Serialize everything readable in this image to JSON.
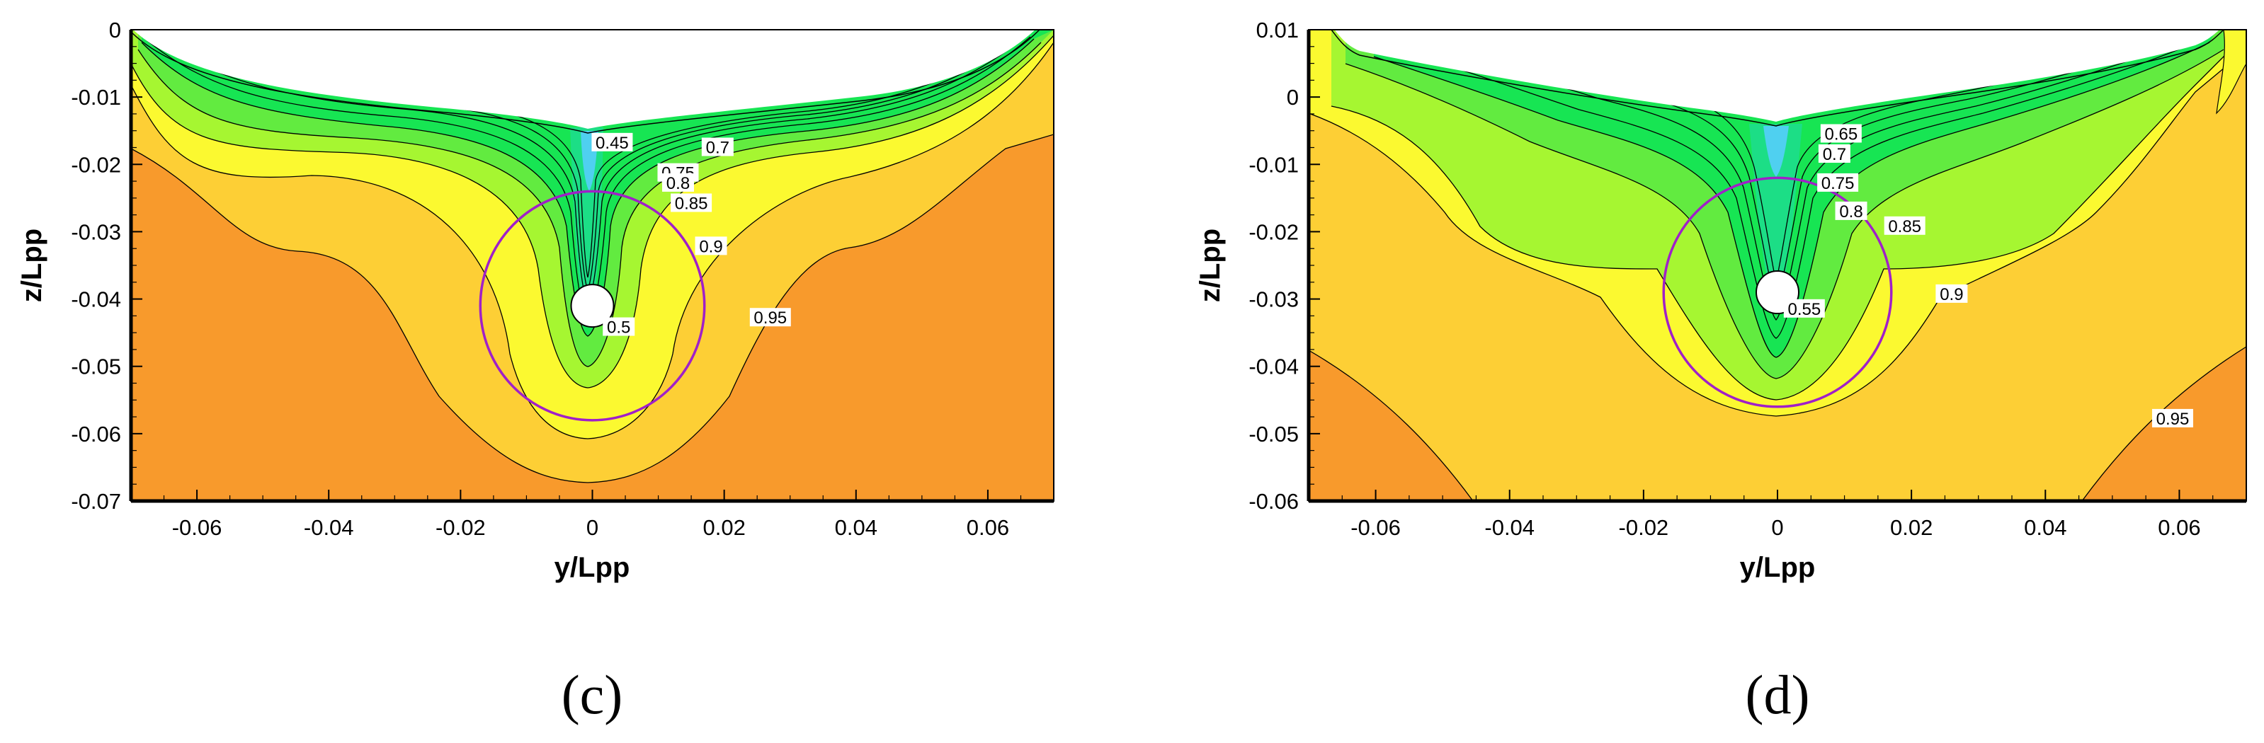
{
  "chart_data": [
    {
      "type": "contour",
      "panel_label": "(c)",
      "xlabel": "y/Lpp",
      "ylabel": "z/Lpp",
      "xlim": [
        -0.07,
        0.07
      ],
      "ylim": [
        -0.07,
        0
      ],
      "xticks": [
        "-0.06",
        "-0.04",
        "-0.02",
        "0",
        "0.02",
        "0.04",
        "0.06"
      ],
      "yticks": [
        "0",
        "-0.01",
        "-0.02",
        "-0.03",
        "-0.04",
        "-0.05",
        "-0.06",
        "-0.07"
      ],
      "hub": {
        "y": 0,
        "z": -0.041
      },
      "propeller_disk": {
        "y": 0,
        "z": -0.041,
        "radius": 0.017,
        "color": "#A020C8"
      },
      "contour_labels": [
        {
          "text": "0.45",
          "y": 0.003,
          "z": -0.0168
        },
        {
          "text": "0.7",
          "y": 0.019,
          "z": -0.0175
        },
        {
          "text": "0.75",
          "y": 0.013,
          "z": -0.0213
        },
        {
          "text": "0.8",
          "y": 0.013,
          "z": -0.0228
        },
        {
          "text": "0.85",
          "y": 0.015,
          "z": -0.0258
        },
        {
          "text": "0.9",
          "y": 0.018,
          "z": -0.0322
        },
        {
          "text": "0.95",
          "y": 0.027,
          "z": -0.0428
        },
        {
          "text": "0.5",
          "y": 0.004,
          "z": -0.0442
        }
      ]
    },
    {
      "type": "contour",
      "panel_label": "(d)",
      "xlabel": "y/Lpp",
      "ylabel": "z/Lpp",
      "xlim": [
        -0.07,
        0.07
      ],
      "ylim": [
        -0.06,
        0.01
      ],
      "xticks": [
        "-0.06",
        "-0.04",
        "-0.02",
        "0",
        "0.02",
        "0.04",
        "0.06"
      ],
      "yticks": [
        "0.01",
        "0",
        "-0.01",
        "-0.02",
        "-0.03",
        "-0.04",
        "-0.05",
        "-0.06"
      ],
      "hub": {
        "y": 0,
        "z": -0.029
      },
      "propeller_disk": {
        "y": 0,
        "z": -0.029,
        "radius": 0.017,
        "color": "#A020C8"
      },
      "contour_labels": [
        {
          "text": "0.65",
          "y": 0.0095,
          "z": -0.0055
        },
        {
          "text": "0.7",
          "y": 0.0085,
          "z": -0.0085
        },
        {
          "text": "0.75",
          "y": 0.009,
          "z": -0.0128
        },
        {
          "text": "0.8",
          "y": 0.011,
          "z": -0.017
        },
        {
          "text": "0.85",
          "y": 0.019,
          "z": -0.0192
        },
        {
          "text": "0.9",
          "y": 0.026,
          "z": -0.0293
        },
        {
          "text": "0.95",
          "y": 0.059,
          "z": -0.0478
        },
        {
          "text": "0.55",
          "y": 0.004,
          "z": -0.0315
        }
      ]
    }
  ],
  "colors": {
    "outer": "#F89A2C",
    "band_095": "#FDCF35",
    "band_09": "#FBF930",
    "band_085": "#A6F631",
    "band_08": "#62EB40",
    "band_core": "#17E553",
    "band_low": "#20D8B0",
    "band_min": "#4FD0F0",
    "contour_line": "#000000"
  }
}
